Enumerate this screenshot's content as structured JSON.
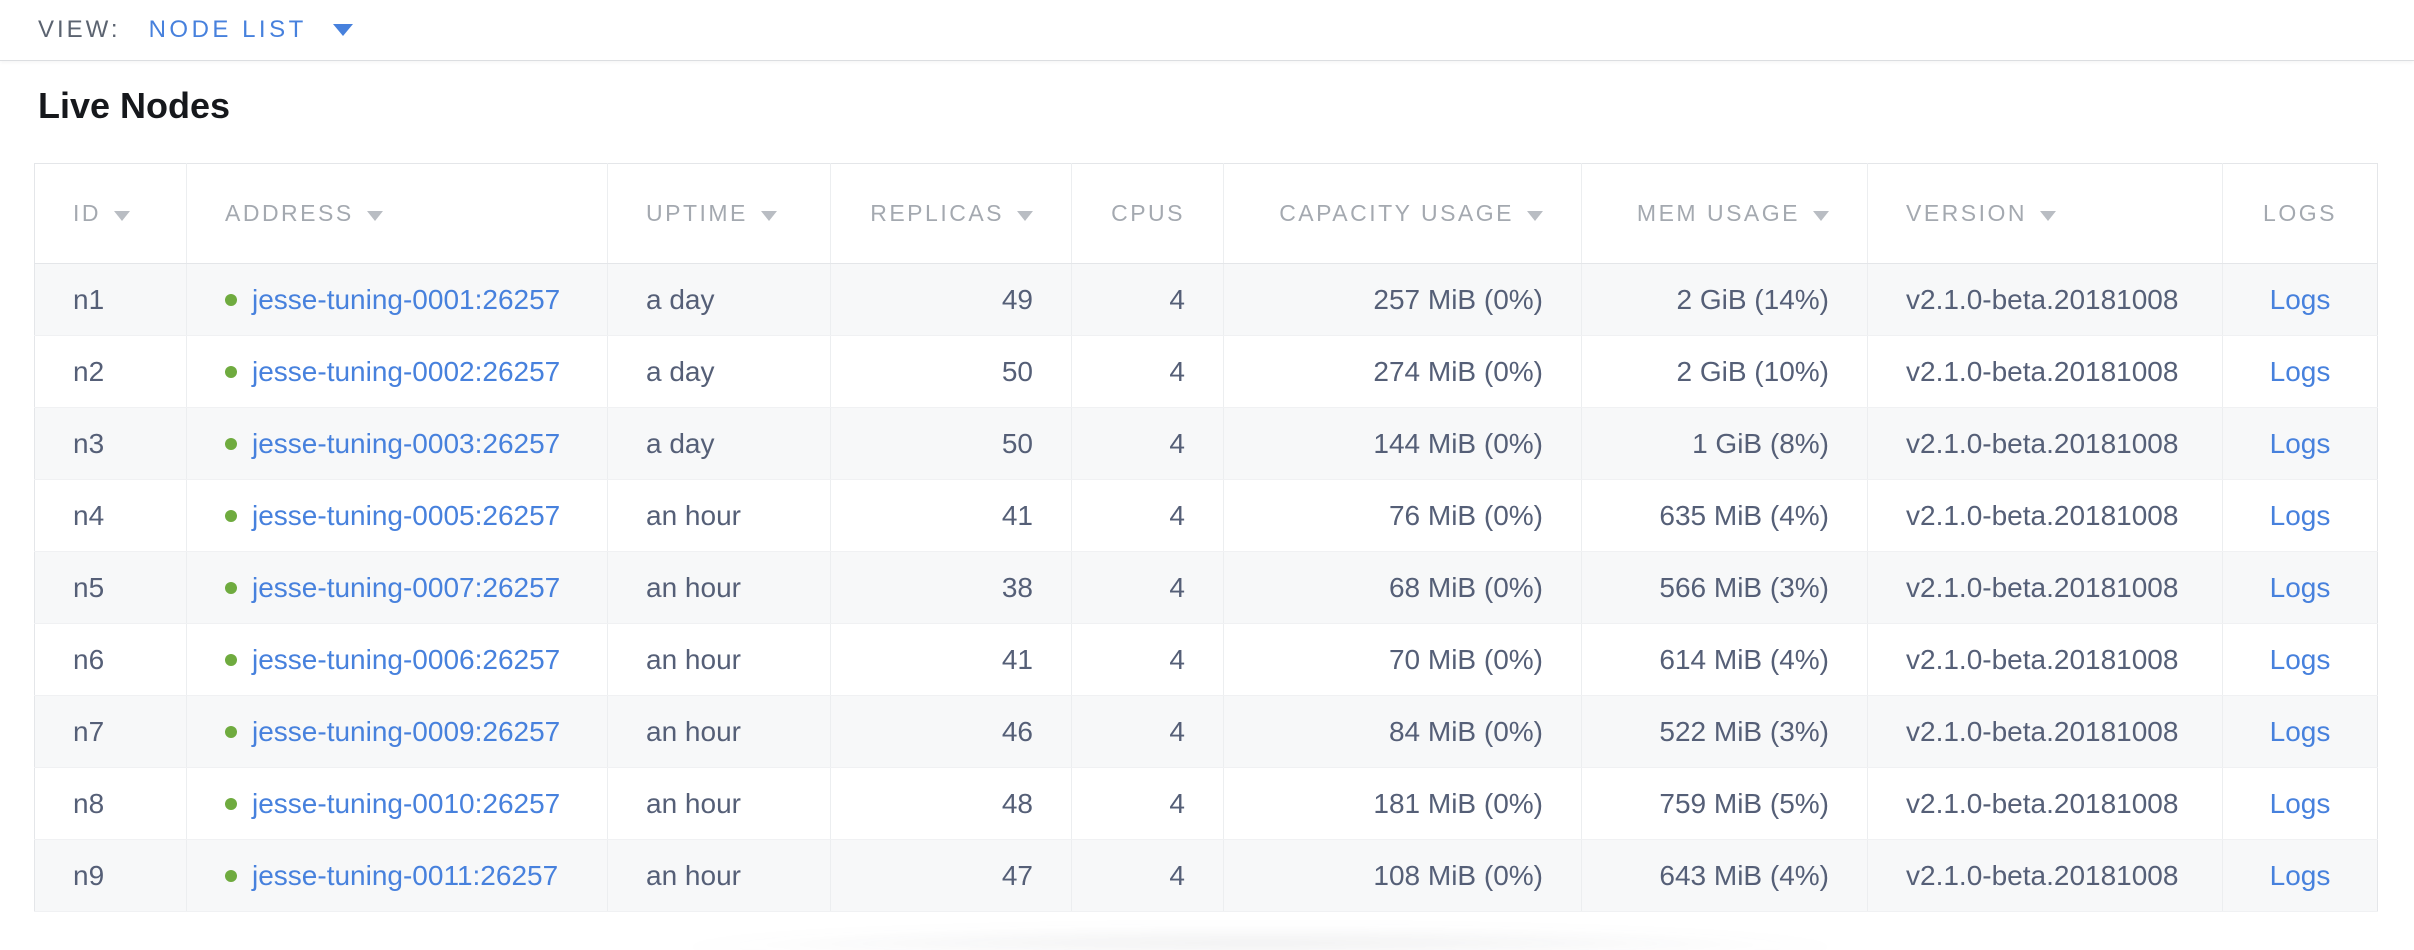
{
  "topbar": {
    "view_label": "VIEW:",
    "view_value": "NODE LIST"
  },
  "page": {
    "title": "Live Nodes"
  },
  "nodes_table": {
    "columns": [
      {
        "key": "id",
        "label": "ID",
        "sortable": true,
        "align": "left"
      },
      {
        "key": "address",
        "label": "ADDRESS",
        "sortable": true,
        "align": "left"
      },
      {
        "key": "uptime",
        "label": "UPTIME",
        "sortable": true,
        "align": "left"
      },
      {
        "key": "replicas",
        "label": "REPLICAS",
        "sortable": true,
        "align": "right"
      },
      {
        "key": "cpus",
        "label": "CPUS",
        "sortable": false,
        "align": "right"
      },
      {
        "key": "capacity",
        "label": "CAPACITY USAGE",
        "sortable": true,
        "align": "right"
      },
      {
        "key": "mem",
        "label": "MEM USAGE",
        "sortable": true,
        "align": "right"
      },
      {
        "key": "version",
        "label": "VERSION",
        "sortable": true,
        "align": "left"
      },
      {
        "key": "logs",
        "label": "LOGS",
        "sortable": false,
        "align": "center"
      }
    ],
    "rows": [
      {
        "id": "n1",
        "status": "live",
        "address": "jesse-tuning-0001:26257",
        "uptime": "a day",
        "replicas": "49",
        "cpus": "4",
        "capacity": "257 MiB (0%)",
        "mem": "2 GiB (14%)",
        "version": "v2.1.0-beta.20181008",
        "logs": "Logs"
      },
      {
        "id": "n2",
        "status": "live",
        "address": "jesse-tuning-0002:26257",
        "uptime": "a day",
        "replicas": "50",
        "cpus": "4",
        "capacity": "274 MiB (0%)",
        "mem": "2 GiB (10%)",
        "version": "v2.1.0-beta.20181008",
        "logs": "Logs"
      },
      {
        "id": "n3",
        "status": "live",
        "address": "jesse-tuning-0003:26257",
        "uptime": "a day",
        "replicas": "50",
        "cpus": "4",
        "capacity": "144 MiB (0%)",
        "mem": "1 GiB (8%)",
        "version": "v2.1.0-beta.20181008",
        "logs": "Logs"
      },
      {
        "id": "n4",
        "status": "live",
        "address": "jesse-tuning-0005:26257",
        "uptime": "an hour",
        "replicas": "41",
        "cpus": "4",
        "capacity": "76 MiB (0%)",
        "mem": "635 MiB (4%)",
        "version": "v2.1.0-beta.20181008",
        "logs": "Logs"
      },
      {
        "id": "n5",
        "status": "live",
        "address": "jesse-tuning-0007:26257",
        "uptime": "an hour",
        "replicas": "38",
        "cpus": "4",
        "capacity": "68 MiB (0%)",
        "mem": "566 MiB (3%)",
        "version": "v2.1.0-beta.20181008",
        "logs": "Logs"
      },
      {
        "id": "n6",
        "status": "live",
        "address": "jesse-tuning-0006:26257",
        "uptime": "an hour",
        "replicas": "41",
        "cpus": "4",
        "capacity": "70 MiB (0%)",
        "mem": "614 MiB (4%)",
        "version": "v2.1.0-beta.20181008",
        "logs": "Logs"
      },
      {
        "id": "n7",
        "status": "live",
        "address": "jesse-tuning-0009:26257",
        "uptime": "an hour",
        "replicas": "46",
        "cpus": "4",
        "capacity": "84 MiB (0%)",
        "mem": "522 MiB (3%)",
        "version": "v2.1.0-beta.20181008",
        "logs": "Logs"
      },
      {
        "id": "n8",
        "status": "live",
        "address": "jesse-tuning-0010:26257",
        "uptime": "an hour",
        "replicas": "48",
        "cpus": "4",
        "capacity": "181 MiB (0%)",
        "mem": "759 MiB (5%)",
        "version": "v2.1.0-beta.20181008",
        "logs": "Logs"
      },
      {
        "id": "n9",
        "status": "live",
        "address": "jesse-tuning-0011:26257",
        "uptime": "an hour",
        "replicas": "47",
        "cpus": "4",
        "capacity": "108 MiB (0%)",
        "mem": "643 MiB (4%)",
        "version": "v2.1.0-beta.20181008",
        "logs": "Logs"
      }
    ]
  },
  "colors": {
    "link": "#4781dd",
    "node_live": "#6fab3f",
    "header_text": "#a4a9b0",
    "body_text": "#555f77",
    "row_stripe": "#f7f8f9"
  }
}
